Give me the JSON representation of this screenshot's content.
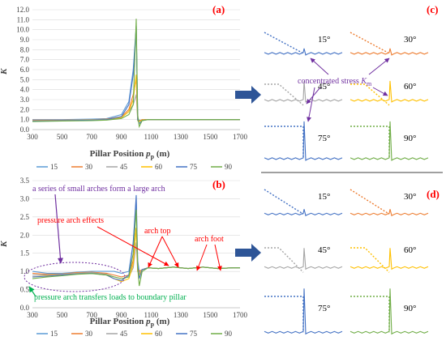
{
  "chart_data": [
    {
      "panel": "(a)",
      "type": "line",
      "x": [
        300,
        500,
        700,
        800,
        900,
        950,
        980,
        1000,
        1010,
        1020,
        1040,
        1080,
        1200,
        1400,
        1700
      ],
      "xlabel_main": "Pillar Position ",
      "xlabel_var": "p",
      "xlabel_sub": "p",
      "xlabel_unit": " (m)",
      "ylabel": "K",
      "xlim": [
        300,
        1700
      ],
      "ylim": [
        0,
        12
      ],
      "xticks": [
        "300",
        "500",
        "700",
        "900",
        "1100",
        "1300",
        "1500",
        "1700"
      ],
      "yticks": [
        "0.0",
        "1.0",
        "2.0",
        "3.0",
        "4.0",
        "5.0",
        "6.0",
        "7.0",
        "8.0",
        "9.0",
        "10.0",
        "11.0",
        "12.0"
      ],
      "series": [
        {
          "name": "15",
          "color": "#5b9bd5",
          "values": [
            1.0,
            1.0,
            1.05,
            1.1,
            1.5,
            2.8,
            6.0,
            10.4,
            1.2,
            0.9,
            1.0,
            1.0,
            1.0,
            1.0,
            1.0
          ]
        },
        {
          "name": "30",
          "color": "#ed7d31",
          "values": [
            0.95,
            0.95,
            1.0,
            1.05,
            1.3,
            2.0,
            3.5,
            5.2,
            1.0,
            0.85,
            1.0,
            1.0,
            1.0,
            1.0,
            1.0
          ]
        },
        {
          "name": "45",
          "color": "#a5a5a5",
          "values": [
            0.9,
            0.92,
            1.0,
            1.0,
            1.2,
            1.8,
            2.5,
            3.5,
            0.9,
            0.8,
            0.95,
            1.0,
            1.0,
            1.0,
            1.0
          ]
        },
        {
          "name": "60",
          "color": "#ffc000",
          "values": [
            0.85,
            0.9,
            0.95,
            1.0,
            1.2,
            1.8,
            3.0,
            5.5,
            0.9,
            0.8,
            0.95,
            1.0,
            1.0,
            1.0,
            1.0
          ]
        },
        {
          "name": "75",
          "color": "#4472c4",
          "values": [
            0.85,
            0.88,
            0.95,
            1.0,
            1.3,
            2.5,
            5.5,
            10.3,
            1.0,
            0.6,
            0.9,
            1.0,
            1.0,
            1.0,
            1.0
          ]
        },
        {
          "name": "90",
          "color": "#70ad47",
          "values": [
            0.8,
            0.85,
            0.9,
            0.95,
            1.1,
            1.5,
            2.5,
            11.1,
            1.5,
            0.3,
            0.9,
            1.0,
            1.0,
            1.0,
            1.0
          ]
        }
      ]
    },
    {
      "panel": "(b)",
      "type": "line",
      "x": [
        300,
        400,
        500,
        600,
        700,
        800,
        850,
        900,
        950,
        980,
        1000,
        1010,
        1020,
        1040,
        1080,
        1150,
        1250,
        1350,
        1450,
        1550,
        1650,
        1700
      ],
      "xlabel_main": "Pillar Position ",
      "xlabel_var": "p",
      "xlabel_sub": "p",
      "xlabel_unit": " (m)",
      "ylabel": "K",
      "xlim": [
        300,
        1700
      ],
      "ylim": [
        0,
        3.5
      ],
      "xticks": [
        "300",
        "500",
        "700",
        "900",
        "1100",
        "1300",
        "1500",
        "1700"
      ],
      "yticks": [
        "0.0",
        "0.5",
        "1.0",
        "1.5",
        "2.0",
        "2.5",
        "3.0",
        "3.5"
      ],
      "series": [
        {
          "name": "15",
          "color": "#5b9bd5",
          "values": [
            1.0,
            0.95,
            0.95,
            0.98,
            1.0,
            1.0,
            1.0,
            0.95,
            1.0,
            1.8,
            2.9,
            1.3,
            1.0,
            1.05,
            1.1,
            1.08,
            1.12,
            1.08,
            1.12,
            1.08,
            1.1,
            1.1
          ]
        },
        {
          "name": "30",
          "color": "#ed7d31",
          "values": [
            0.95,
            0.92,
            0.93,
            0.97,
            0.98,
            0.95,
            0.9,
            0.85,
            0.9,
            1.3,
            2.2,
            1.1,
            1.0,
            1.05,
            1.1,
            1.08,
            1.12,
            1.08,
            1.12,
            1.08,
            1.1,
            1.1
          ]
        },
        {
          "name": "45",
          "color": "#a5a5a5",
          "values": [
            0.9,
            0.9,
            0.92,
            0.95,
            0.97,
            0.92,
            0.85,
            0.8,
            0.85,
            1.1,
            1.8,
            1.0,
            0.95,
            1.05,
            1.1,
            1.08,
            1.12,
            1.08,
            1.12,
            1.08,
            1.1,
            1.1
          ]
        },
        {
          "name": "60",
          "color": "#ffc000",
          "values": [
            0.85,
            0.88,
            0.9,
            0.93,
            0.95,
            0.9,
            0.8,
            0.72,
            0.8,
            1.2,
            2.2,
            1.0,
            0.9,
            1.05,
            1.1,
            1.08,
            1.12,
            1.08,
            1.12,
            1.08,
            1.1,
            1.1
          ]
        },
        {
          "name": "75",
          "color": "#4472c4",
          "values": [
            0.85,
            0.87,
            0.9,
            0.93,
            0.95,
            0.9,
            0.8,
            0.75,
            0.9,
            1.8,
            3.1,
            1.2,
            0.8,
            1.05,
            1.1,
            1.08,
            1.12,
            1.08,
            1.12,
            1.08,
            1.1,
            1.1
          ]
        },
        {
          "name": "90",
          "color": "#70ad47",
          "values": [
            0.8,
            0.85,
            0.88,
            0.92,
            0.94,
            0.9,
            0.85,
            0.8,
            0.85,
            1.5,
            2.7,
            1.1,
            0.6,
            1.0,
            1.1,
            1.08,
            1.12,
            1.08,
            1.12,
            1.08,
            1.1,
            1.1
          ]
        }
      ]
    }
  ],
  "labels": {
    "a": "(a)",
    "b": "(b)",
    "c": "(c)",
    "d": "(d)"
  },
  "annotations": {
    "small_arches": "a series of small arches form a large arch",
    "pressure_arch_effects": "pressure arch effects",
    "arch_top": "arch top",
    "arch_foot": "arch foot",
    "transfers": "pressure arch transfers loads to boundary pillar",
    "concentrated_main": "concentrated stress ",
    "concentrated_k": "K",
    "concentrated_sub": "m"
  },
  "small_panels": {
    "c": [
      {
        "angle": "15°",
        "color": "#4472c4"
      },
      {
        "angle": "30°",
        "color": "#ed7d31"
      },
      {
        "angle": "45°",
        "color": "#a5a5a5"
      },
      {
        "angle": "60°",
        "color": "#ffc000"
      },
      {
        "angle": "75°",
        "color": "#4472c4"
      },
      {
        "angle": "90°",
        "color": "#70ad47"
      }
    ],
    "d": [
      {
        "angle": "15°",
        "color": "#4472c4"
      },
      {
        "angle": "30°",
        "color": "#ed7d31"
      },
      {
        "angle": "45°",
        "color": "#a5a5a5"
      },
      {
        "angle": "60°",
        "color": "#ffc000"
      },
      {
        "angle": "75°",
        "color": "#4472c4"
      },
      {
        "angle": "90°",
        "color": "#70ad47"
      }
    ]
  },
  "colors": {
    "arrow": "#2e5597",
    "grid": "#d9d9d9",
    "red": "#ff0000",
    "purple": "#7030a0",
    "green": "#00b050"
  }
}
